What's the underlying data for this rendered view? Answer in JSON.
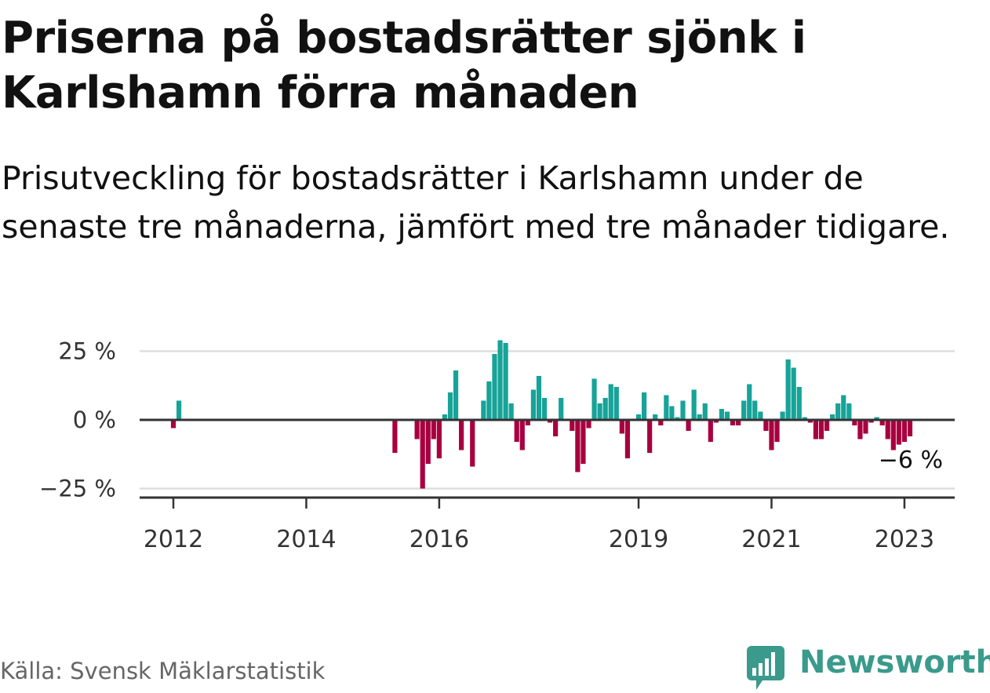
{
  "title": "Priserna på bostadsrätter sjönk i Karlshamn förra månaden",
  "subtitle": "Prisutveckling för bostadsrätter i Karlshamn under de senaste tre månaderna, jämfört med tre månader tidigare.",
  "source": "Källa: Svensk Mäklarstatistik",
  "brand": {
    "name": "Newsworthy",
    "logo_icon": "newsworthy-logo-icon",
    "color": "#3a9a8c"
  },
  "chart_data": {
    "type": "bar",
    "title": "",
    "xlabel": "",
    "ylabel": "",
    "ylim": [
      -28,
      30
    ],
    "y_ticks": [
      25,
      0,
      -25
    ],
    "y_tick_labels": [
      "25 %",
      "0 %",
      "−25 %"
    ],
    "x_ticks": [
      {
        "value": "2012-01",
        "label": "2012"
      },
      {
        "value": "2014-01",
        "label": "2014"
      },
      {
        "value": "2016-01",
        "label": "2016"
      },
      {
        "value": "2019-01",
        "label": "2019"
      },
      {
        "value": "2021-01",
        "label": "2021"
      },
      {
        "value": "2023-01",
        "label": "2023"
      }
    ],
    "colors": {
      "positive": "#17a398",
      "negative": "#a8003f",
      "axis": "#333333",
      "grid": "#dddddd"
    },
    "grid": true,
    "last_value_label": "−6 %",
    "x": [
      "2012-01",
      "2012-02",
      "2015-05",
      "2015-09",
      "2015-10",
      "2015-11",
      "2015-12",
      "2016-01",
      "2016-02",
      "2016-03",
      "2016-04",
      "2016-05",
      "2016-06",
      "2016-07",
      "2016-08",
      "2016-09",
      "2016-10",
      "2016-11",
      "2016-12",
      "2017-01",
      "2017-02",
      "2017-03",
      "2017-04",
      "2017-05",
      "2017-06",
      "2017-07",
      "2017-08",
      "2017-09",
      "2017-10",
      "2017-11",
      "2017-12",
      "2018-01",
      "2018-02",
      "2018-03",
      "2018-04",
      "2018-05",
      "2018-06",
      "2018-07",
      "2018-08",
      "2018-09",
      "2018-10",
      "2018-11",
      "2018-12",
      "2019-01",
      "2019-02",
      "2019-03",
      "2019-04",
      "2019-05",
      "2019-06",
      "2019-07",
      "2019-08",
      "2019-09",
      "2019-10",
      "2019-11",
      "2019-12",
      "2020-01",
      "2020-02",
      "2020-03",
      "2020-04",
      "2020-05",
      "2020-06",
      "2020-07",
      "2020-08",
      "2020-09",
      "2020-10",
      "2020-11",
      "2020-12",
      "2021-01",
      "2021-02",
      "2021-03",
      "2021-04",
      "2021-05",
      "2021-06",
      "2021-07",
      "2021-08",
      "2021-09",
      "2021-10",
      "2021-11",
      "2021-12",
      "2022-01",
      "2022-02",
      "2022-03",
      "2022-04",
      "2022-05",
      "2022-06",
      "2022-07",
      "2022-08",
      "2022-09",
      "2022-10",
      "2022-11",
      "2022-12",
      "2023-01",
      "2023-02"
    ],
    "values": [
      -3,
      7,
      -12,
      -7,
      -25,
      -16,
      -7,
      -14,
      2,
      10,
      18,
      -11,
      0,
      -17,
      0,
      7,
      14,
      24,
      29,
      28,
      6,
      -8,
      -11,
      -2,
      11,
      16,
      8,
      -1,
      -6,
      8,
      0,
      -4,
      -19,
      -16,
      -3,
      15,
      6,
      8,
      13,
      12,
      -5,
      -14,
      0,
      2,
      10,
      -12,
      2,
      -2,
      9,
      5,
      1,
      7,
      -4,
      11,
      2,
      6,
      -8,
      -1,
      4,
      3,
      -2,
      -2,
      7,
      13,
      7,
      3,
      -4,
      -11,
      -8,
      3,
      22,
      19,
      12,
      1,
      -1,
      -7,
      -7,
      -4,
      2,
      6,
      9,
      6,
      -2,
      -7,
      -5,
      -1,
      1,
      -2,
      -7,
      -11,
      -9,
      -8,
      -6
    ]
  }
}
